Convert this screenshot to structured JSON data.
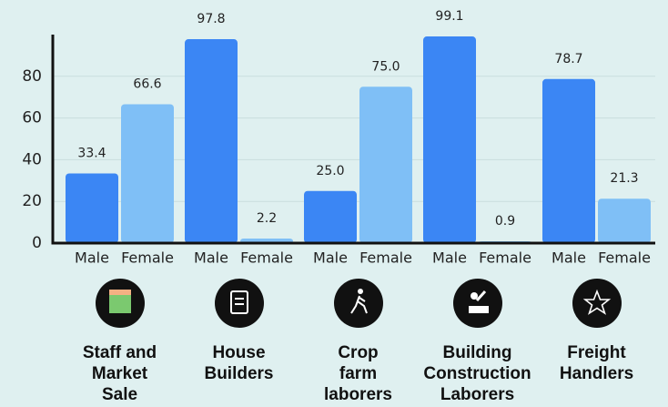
{
  "chart_data": {
    "type": "bar",
    "categories": [
      "Staff and\nMarket\nSale",
      "House\nBuilders",
      "Crop\nfarm\nlaborers",
      "Building\nConstruction\nLaborers",
      "Freight\nHandlers"
    ],
    "series": [
      {
        "name": "Male",
        "color": "#3b86f4",
        "values": [
          33.4,
          97.8,
          25,
          99.1,
          78.7
        ],
        "value_labels": [
          "33.4",
          "97.8",
          "25.0",
          "99.1",
          "78.7"
        ]
      },
      {
        "name": "Female",
        "color": "#7fbff6",
        "values": [
          66.6,
          2.2,
          75,
          0.9,
          21.3
        ],
        "value_labels": [
          "66.6",
          "2.2",
          "75.0",
          "0.9",
          "21.3"
        ]
      }
    ],
    "ylim": [
      0,
      100
    ],
    "yticks": [
      0,
      20,
      40,
      60,
      80
    ],
    "grid": true
  }
}
